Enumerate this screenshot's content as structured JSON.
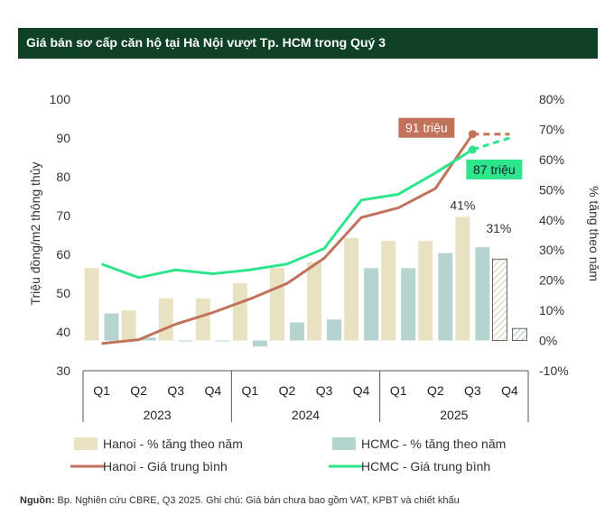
{
  "header": {
    "title": "Giá bán sơ cấp căn hộ tại Hà Nội vượt Tp. HCM trong Quý 3"
  },
  "chart_data": {
    "type": "bar+line",
    "ylabel_left": "Triệu đồng/m2 thông thủy",
    "ylabel_right": "% tăng theo năm",
    "ylim_left": [
      30,
      100
    ],
    "ylim_right": [
      -10,
      80
    ],
    "yticks_left": [
      "30",
      "40",
      "50",
      "60",
      "70",
      "80",
      "90",
      "100"
    ],
    "yticks_right": [
      "-10%",
      "0%",
      "10%",
      "20%",
      "30%",
      "40%",
      "50%",
      "60%",
      "70%",
      "80%"
    ],
    "categories": [
      "Q1",
      "Q2",
      "Q3",
      "Q4",
      "Q1",
      "Q2",
      "Q3",
      "Q4",
      "Q1",
      "Q2",
      "Q3",
      "Q4"
    ],
    "years": [
      "2023",
      "2024",
      "2025"
    ],
    "series": [
      {
        "name": "Hanoi - % tăng theo năm",
        "kind": "bar",
        "axis": "right",
        "color": "#e8e2c2",
        "values": [
          24,
          10,
          14,
          14,
          19,
          24,
          26,
          34,
          33,
          33,
          41,
          27
        ],
        "forecast_from": 11
      },
      {
        "name": "HCMC - % tăng theo năm",
        "kind": "bar",
        "axis": "right",
        "color": "#b6d4cf",
        "values": [
          9,
          1,
          0,
          0,
          -2,
          6,
          7,
          24,
          24,
          29,
          31,
          4
        ],
        "forecast_from": 11
      },
      {
        "name": "Hanoi - Giá trung bình",
        "kind": "line",
        "axis": "left",
        "color": "#c0725a",
        "values": [
          37,
          38,
          42,
          45,
          48.5,
          52.5,
          59,
          69.5,
          72,
          77,
          91,
          91
        ],
        "forecast_from": 10
      },
      {
        "name": "HCMC - Giá trung bình",
        "kind": "line",
        "axis": "left",
        "color": "#2ee58c",
        "values": [
          57.5,
          54,
          56,
          55,
          56,
          57.5,
          61.5,
          74,
          75.5,
          81,
          87,
          90
        ],
        "forecast_from": 10
      }
    ],
    "annotations": [
      {
        "text": "91 triệu",
        "style": "box",
        "color": "#c0725a"
      },
      {
        "text": "87 triệu",
        "style": "box",
        "color": "#2ee58c"
      },
      {
        "text": "41%",
        "style": "plain"
      },
      {
        "text": "31%",
        "style": "plain"
      }
    ]
  },
  "footer": {
    "source_label": "Nguồn:",
    "source_text": " Bp. Nghiên cứu CBRE, Q3 2025. Ghi chú: Giá bán chưa bao gồm VAT, KPBT và chiết khấu"
  }
}
